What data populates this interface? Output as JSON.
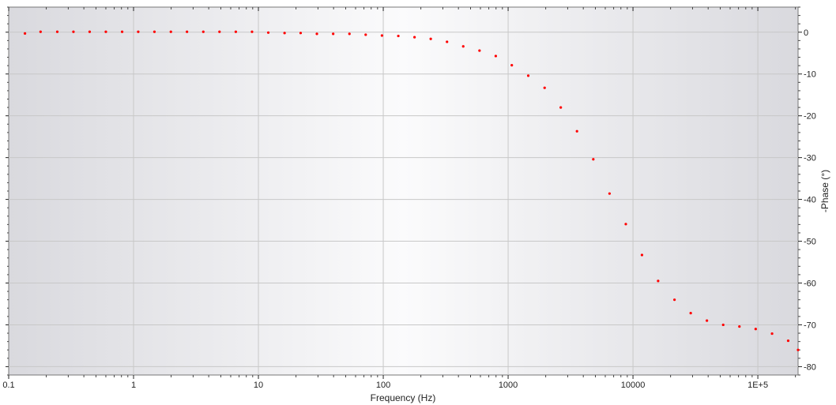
{
  "chart_data": {
    "type": "scatter",
    "title": "",
    "xlabel": "Frequency (Hz)",
    "ylabel": "-Phase (°)",
    "x_scale": "log",
    "xlim": [
      0.1,
      210000
    ],
    "ylim": [
      -82,
      6
    ],
    "x_ticks": [
      {
        "value": 0.1,
        "label": "0.1"
      },
      {
        "value": 1,
        "label": "1"
      },
      {
        "value": 10,
        "label": "10"
      },
      {
        "value": 100,
        "label": "100"
      },
      {
        "value": 1000,
        "label": "1000"
      },
      {
        "value": 10000,
        "label": "10000"
      },
      {
        "value": 100000,
        "label": "1E+5"
      }
    ],
    "y_ticks": [
      {
        "value": 0,
        "label": "0"
      },
      {
        "value": -10,
        "label": "-10"
      },
      {
        "value": -20,
        "label": "-20"
      },
      {
        "value": -30,
        "label": "-30"
      },
      {
        "value": -40,
        "label": "-40"
      },
      {
        "value": -50,
        "label": "-50"
      },
      {
        "value": -60,
        "label": "-60"
      },
      {
        "value": -70,
        "label": "-70"
      },
      {
        "value": -80,
        "label": "-80"
      }
    ],
    "y_axis_side": "right",
    "grid": true,
    "marker_color": "#ff0000",
    "series": [
      {
        "x": [
          0.135,
          0.18,
          0.245,
          0.33,
          0.445,
          0.6,
          0.81,
          1.09,
          1.47,
          1.99,
          2.68,
          3.62,
          4.88,
          6.59,
          8.89,
          12.0,
          16.2,
          21.8,
          29.4,
          39.7,
          53.6,
          72.3,
          97.6,
          132,
          178,
          240,
          324,
          437,
          590,
          796,
          1070,
          1450,
          1960,
          2640,
          3560,
          4810,
          6490,
          8760,
          11800,
          15900,
          21500,
          29000,
          39100,
          52800,
          71200,
          96100,
          130000,
          175000,
          210000
        ],
        "y": [
          -0.3,
          0.1,
          0.1,
          0.1,
          0.1,
          0.1,
          0.1,
          0.1,
          0.1,
          0.1,
          0.1,
          0.1,
          0.1,
          0.1,
          0.1,
          -0.1,
          -0.2,
          -0.2,
          -0.4,
          -0.4,
          -0.4,
          -0.6,
          -0.8,
          -0.9,
          -1.2,
          -1.6,
          -2.3,
          -3.4,
          -4.4,
          -5.7,
          -7.9,
          -10.4,
          -13.3,
          -18.0,
          -23.7,
          -30.4,
          -38.6,
          -45.9,
          -53.3,
          -59.5,
          -64.0,
          -67.2,
          -69.0,
          -70.0,
          -70.4,
          -71.0,
          -72.1,
          -73.8,
          -76.0
        ]
      }
    ]
  }
}
